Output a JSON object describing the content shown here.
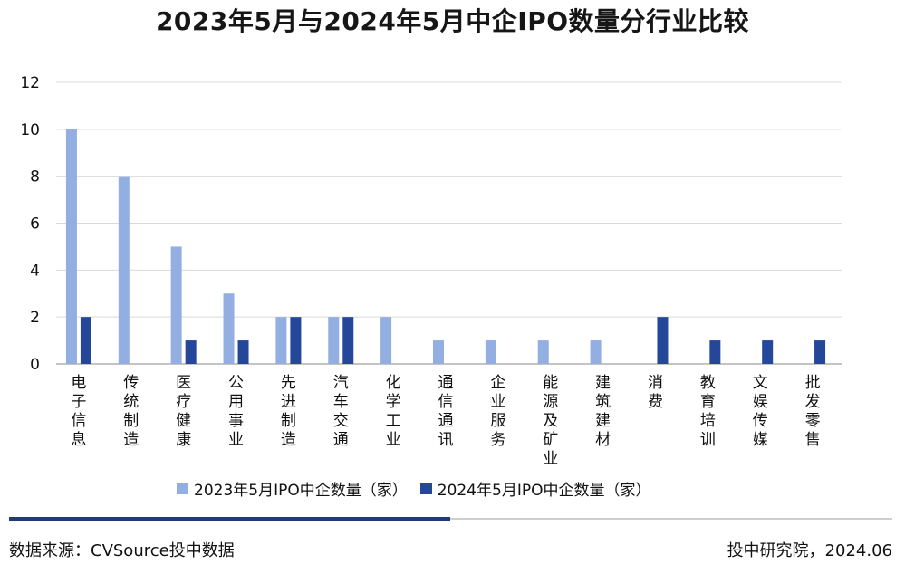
{
  "title": "2023年5月与2024年5月中企IPO数量分行业比较",
  "source": "数据来源：CVSource投中数据",
  "credit": "投中研究院，2024.06",
  "colors": {
    "series_2023": "#93aee0",
    "series_2024": "#24479a",
    "grid": "#d9d9d9",
    "axis": "#888888"
  },
  "chart_data": {
    "type": "bar",
    "title": "2023年5月与2024年5月中企IPO数量分行业比较",
    "categories": [
      "电子信息",
      "传统制造",
      "医疗健康",
      "公用事业",
      "先进制造",
      "汽车交通",
      "化学工业",
      "通信通讯",
      "企业服务",
      "能源及矿业",
      "建筑建材",
      "消费",
      "教育培训",
      "文娱传媒",
      "批发零售"
    ],
    "series": [
      {
        "name": "2023年5月IPO中企数量（家）",
        "values": [
          10,
          8,
          5,
          3,
          2,
          2,
          2,
          1,
          1,
          1,
          1,
          0,
          0,
          0,
          0
        ]
      },
      {
        "name": "2024年5月IPO中企数量（家）",
        "values": [
          2,
          0,
          1,
          1,
          2,
          2,
          0,
          0,
          0,
          0,
          0,
          2,
          1,
          1,
          1
        ]
      }
    ],
    "yticks": [
      0,
      2,
      4,
      6,
      8,
      10,
      12
    ],
    "ylim": [
      0,
      12
    ],
    "xlabel": "",
    "ylabel": "",
    "grid": true,
    "legend_position": "bottom"
  }
}
